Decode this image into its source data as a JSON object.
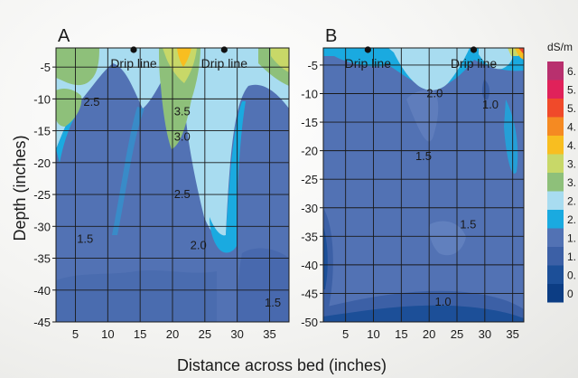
{
  "figure": {
    "xlabel": "Distance across bed (inches)",
    "ylabel": "Depth (inches)",
    "legend_title": "dS/m",
    "legend_labels": [
      "6.",
      "5.",
      "5.",
      "4.",
      "4.",
      "3.",
      "3.",
      "2.",
      "2.",
      "1.",
      "1.",
      "0.",
      "0"
    ],
    "legend_colors": [
      "#b8306e",
      "#e0225a",
      "#f04a2a",
      "#f58a22",
      "#f8be20",
      "#c8d868",
      "#8ec07a",
      "#a8dcf0",
      "#1aaae0",
      "#5272b4",
      "#3c60a6",
      "#1c4f98",
      "#0c3d84"
    ]
  },
  "chart_data": [
    {
      "type": "heatmap",
      "panel_label": "A",
      "xlabel": "Distance across bed (inches)",
      "ylabel": "Depth (inches)",
      "xlim": [
        2,
        38
      ],
      "ylim": [
        -45,
        -2
      ],
      "xticks": [
        5,
        10,
        15,
        20,
        25,
        30,
        35
      ],
      "yticks": [
        -5,
        -10,
        -15,
        -20,
        -25,
        -30,
        -35,
        -40,
        -45
      ],
      "drip_lines": [
        {
          "x": 14,
          "label": "Drip line"
        },
        {
          "x": 28,
          "label": "Drip line"
        }
      ],
      "contour_labels": [
        {
          "x": 7.5,
          "y": -10.5,
          "value": "2.5"
        },
        {
          "x": 21.5,
          "y": -12,
          "value": "3.5"
        },
        {
          "x": 21.5,
          "y": -16,
          "value": "3.0"
        },
        {
          "x": 21.5,
          "y": -25,
          "value": "2.5"
        },
        {
          "x": 24,
          "y": -33,
          "value": "2.0"
        },
        {
          "x": 6.5,
          "y": -32,
          "value": "1.5"
        },
        {
          "x": 35.5,
          "y": -42,
          "value": "1.5"
        }
      ],
      "units": "dS/m",
      "zlim": [
        0,
        6.5
      ]
    },
    {
      "type": "heatmap",
      "panel_label": "B",
      "xlabel": "Distance across bed (inches)",
      "ylabel": "",
      "xlim": [
        1,
        37
      ],
      "ylim": [
        -50,
        -2
      ],
      "xticks": [
        5,
        10,
        15,
        20,
        25,
        30,
        35
      ],
      "yticks": [
        -5,
        -10,
        -15,
        -20,
        -25,
        -30,
        -35,
        -40,
        -45,
        -50
      ],
      "drip_lines": [
        {
          "x": 9,
          "label": "Drip line"
        },
        {
          "x": 28,
          "label": "Drip line"
        }
      ],
      "contour_labels": [
        {
          "x": 21,
          "y": -10,
          "value": "2.0"
        },
        {
          "x": 31,
          "y": -12,
          "value": "1.0"
        },
        {
          "x": 19,
          "y": -21,
          "value": "1.5"
        },
        {
          "x": 27,
          "y": -33,
          "value": "1.5"
        },
        {
          "x": 22.5,
          "y": -46.5,
          "value": "1.0"
        }
      ],
      "units": "dS/m",
      "zlim": [
        0,
        6.5
      ]
    }
  ]
}
